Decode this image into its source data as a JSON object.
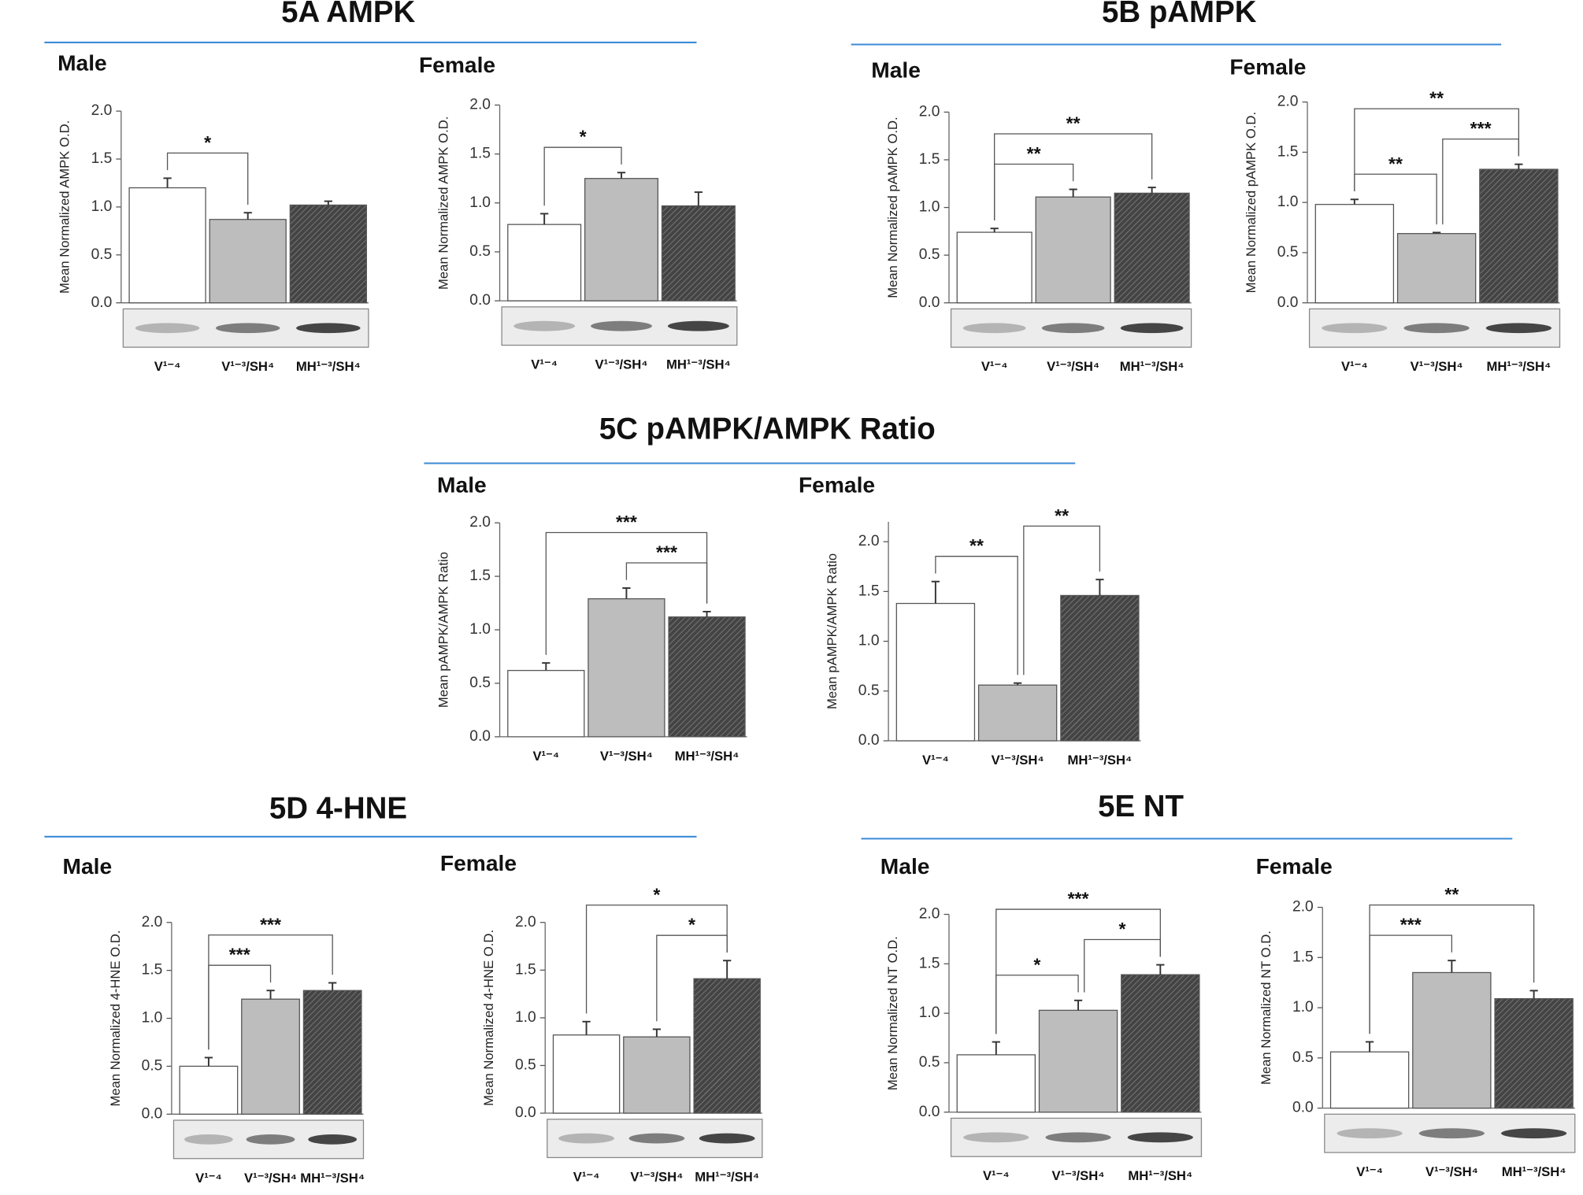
{
  "figure_titles": [
    "5A  AMPK",
    "5B  pAMPK",
    "5C  pAMPK/AMPK  Ratio",
    "5D  4-HNE",
    "5E  NT"
  ],
  "chart_data": [
    {
      "type": "bar",
      "subtitle": "Male",
      "y_label": "Mean Normalized AMPK O.D.",
      "categories": [
        "V¹⁻⁴",
        "V¹⁻³/SH⁴",
        "MH¹⁻³/SH⁴"
      ],
      "values": [
        1.2,
        0.87,
        1.02
      ],
      "errors": [
        0.1,
        0.07,
        0.04
      ],
      "colors": [
        "#ffffff",
        "#bdbdbd",
        "#555555"
      ],
      "hatched": [
        false,
        false,
        true
      ],
      "ylim": [
        0,
        2
      ],
      "yticks": [
        {
          "value": 0,
          "label": "0.0"
        },
        {
          "value": 0.5,
          "label": "0.5"
        },
        {
          "value": 1,
          "label": "1.0"
        },
        {
          "value": 1.5,
          "label": "1.5"
        },
        {
          "value": 2,
          "label": "2.0"
        }
      ],
      "annotations": [
        {
          "from": 0,
          "to": 1,
          "label": "*"
        }
      ]
    },
    {
      "type": "bar",
      "subtitle": "Female",
      "y_label": "Mean Normalized AMPK O.D.",
      "categories": [
        "V¹⁻⁴",
        "V¹⁻³/SH⁴",
        "MH¹⁻³/SH⁴"
      ],
      "values": [
        0.78,
        1.25,
        0.97
      ],
      "errors": [
        0.11,
        0.06,
        0.14
      ],
      "colors": [
        "#ffffff",
        "#bdbdbd",
        "#555555"
      ],
      "hatched": [
        false,
        false,
        true
      ],
      "ylim": [
        0,
        2
      ],
      "yticks": [
        {
          "value": 0,
          "label": "0.0"
        },
        {
          "value": 0.5,
          "label": "0.5"
        },
        {
          "value": 1,
          "label": "1.0"
        },
        {
          "value": 1.5,
          "label": "1.5"
        },
        {
          "value": 2,
          "label": "2.0"
        }
      ],
      "annotations": [
        {
          "from": 0,
          "to": 1,
          "label": "*"
        }
      ]
    },
    {
      "type": "bar",
      "subtitle": "Male",
      "y_label": "Mean Normalized pAMPK O.D.",
      "categories": [
        "V¹⁻⁴",
        "V¹⁻³/SH⁴",
        "MH¹⁻³/SH⁴"
      ],
      "values": [
        0.74,
        1.11,
        1.15
      ],
      "errors": [
        0.04,
        0.08,
        0.06
      ],
      "colors": [
        "#ffffff",
        "#bdbdbd",
        "#555555"
      ],
      "hatched": [
        false,
        false,
        true
      ],
      "ylim": [
        0,
        2
      ],
      "yticks": [
        {
          "value": 0,
          "label": "0.0"
        },
        {
          "value": 0.5,
          "label": "0.5"
        },
        {
          "value": 1,
          "label": "1.0"
        },
        {
          "value": 1.5,
          "label": "1.5"
        },
        {
          "value": 2,
          "label": "2.0"
        }
      ],
      "annotations": [
        {
          "from": 0,
          "to": 1,
          "label": "**"
        },
        {
          "from": 0,
          "to": 2,
          "label": "**"
        }
      ]
    },
    {
      "type": "bar",
      "subtitle": "Female",
      "y_label": "Mean Normalized pAMPK O.D.",
      "categories": [
        "V¹⁻⁴",
        "V¹⁻³/SH⁴",
        "MH¹⁻³/SH⁴"
      ],
      "values": [
        0.98,
        0.69,
        1.33
      ],
      "errors": [
        0.05,
        0.01,
        0.05
      ],
      "colors": [
        "#ffffff",
        "#bdbdbd",
        "#555555"
      ],
      "hatched": [
        false,
        false,
        true
      ],
      "ylim": [
        0,
        2
      ],
      "yticks": [
        {
          "value": 0,
          "label": "0.0"
        },
        {
          "value": 0.5,
          "label": "0.5"
        },
        {
          "value": 1,
          "label": "1.0"
        },
        {
          "value": 1.5,
          "label": "1.5"
        },
        {
          "value": 2,
          "label": "2.0"
        }
      ],
      "annotations": [
        {
          "from": 0,
          "to": 1,
          "label": "**"
        },
        {
          "from": 1,
          "to": 2,
          "label": "***"
        },
        {
          "from": 0,
          "to": 2,
          "label": "**"
        }
      ]
    },
    {
      "type": "bar",
      "subtitle": "Male",
      "y_label": "Mean pAMPK/AMPK Ratio",
      "categories": [
        "V¹⁻⁴",
        "V¹⁻³/SH⁴",
        "MH¹⁻³/SH⁴"
      ],
      "values": [
        0.62,
        1.29,
        1.12
      ],
      "errors": [
        0.07,
        0.1,
        0.05
      ],
      "colors": [
        "#ffffff",
        "#bdbdbd",
        "#555555"
      ],
      "hatched": [
        false,
        false,
        true
      ],
      "ylim": [
        0,
        2
      ],
      "yticks": [
        {
          "value": 0,
          "label": "0.0"
        },
        {
          "value": 0.5,
          "label": "0.5"
        },
        {
          "value": 1,
          "label": "1.0"
        },
        {
          "value": 1.5,
          "label": "1.5"
        },
        {
          "value": 2,
          "label": "2.0"
        }
      ],
      "annotations": [
        {
          "from": 1,
          "to": 2,
          "label": "***"
        },
        {
          "from": 0,
          "to": 2,
          "label": "***"
        }
      ]
    },
    {
      "type": "bar",
      "subtitle": "Female",
      "y_label": "Mean pAMPK/AMPK Ratio",
      "categories": [
        "V¹⁻⁴",
        "V¹⁻³/SH⁴",
        "MH¹⁻³/SH⁴"
      ],
      "values": [
        1.38,
        0.56,
        1.46
      ],
      "errors": [
        0.22,
        0.02,
        0.16
      ],
      "colors": [
        "#ffffff",
        "#bdbdbd",
        "#555555"
      ],
      "hatched": [
        false,
        false,
        true
      ],
      "ylim": [
        0,
        2.2
      ],
      "yticks": [
        {
          "value": 0,
          "label": "0.0"
        },
        {
          "value": 0.5,
          "label": "0.5"
        },
        {
          "value": 1,
          "label": "1.0"
        },
        {
          "value": 1.5,
          "label": "1.5"
        },
        {
          "value": 2,
          "label": "2.0"
        }
      ],
      "annotations": [
        {
          "from": 0,
          "to": 1,
          "label": "**"
        },
        {
          "from": 1,
          "to": 2,
          "label": "**"
        }
      ]
    },
    {
      "type": "bar",
      "subtitle": "Male",
      "y_label": "Mean Normalized 4-HNE O.D.",
      "categories": [
        "V¹⁻⁴",
        "V¹⁻³/SH⁴",
        "MH¹⁻³/SH⁴"
      ],
      "values": [
        0.5,
        1.2,
        1.29
      ],
      "errors": [
        0.09,
        0.09,
        0.08
      ],
      "colors": [
        "#ffffff",
        "#bdbdbd",
        "#555555"
      ],
      "hatched": [
        false,
        false,
        true
      ],
      "ylim": [
        0,
        2
      ],
      "yticks": [
        {
          "value": 0,
          "label": "0.0"
        },
        {
          "value": 0.5,
          "label": "0.5"
        },
        {
          "value": 1,
          "label": "1.0"
        },
        {
          "value": 1.5,
          "label": "1.5"
        },
        {
          "value": 2,
          "label": "2.0"
        }
      ],
      "annotations": [
        {
          "from": 0,
          "to": 1,
          "label": "***"
        },
        {
          "from": 0,
          "to": 2,
          "label": "***"
        }
      ]
    },
    {
      "type": "bar",
      "subtitle": "Female",
      "y_label": "Mean Normalized 4-HNE O.D.",
      "categories": [
        "V¹⁻⁴",
        "V¹⁻³/SH⁴",
        "MH¹⁻³/SH⁴"
      ],
      "values": [
        0.82,
        0.8,
        1.41
      ],
      "errors": [
        0.14,
        0.08,
        0.19
      ],
      "colors": [
        "#ffffff",
        "#bdbdbd",
        "#555555"
      ],
      "hatched": [
        false,
        false,
        true
      ],
      "ylim": [
        0,
        2
      ],
      "yticks": [
        {
          "value": 0,
          "label": "0.0"
        },
        {
          "value": 0.5,
          "label": "0.5"
        },
        {
          "value": 1,
          "label": "1.0"
        },
        {
          "value": 1.5,
          "label": "1.5"
        },
        {
          "value": 2,
          "label": "2.0"
        }
      ],
      "annotations": [
        {
          "from": 1,
          "to": 2,
          "label": "*"
        },
        {
          "from": 0,
          "to": 2,
          "label": "*"
        }
      ]
    },
    {
      "type": "bar",
      "subtitle": "Male",
      "y_label": "Mean Normalized NT O.D.",
      "categories": [
        "V¹⁻⁴",
        "V¹⁻³/SH⁴",
        "MH¹⁻³/SH⁴"
      ],
      "values": [
        0.58,
        1.03,
        1.39
      ],
      "errors": [
        0.13,
        0.1,
        0.1
      ],
      "colors": [
        "#ffffff",
        "#bdbdbd",
        "#555555"
      ],
      "hatched": [
        false,
        false,
        true
      ],
      "ylim": [
        0,
        2
      ],
      "yticks": [
        {
          "value": 0,
          "label": "0.0"
        },
        {
          "value": 0.5,
          "label": "0.5"
        },
        {
          "value": 1,
          "label": "1.0"
        },
        {
          "value": 1.5,
          "label": "1.5"
        },
        {
          "value": 2,
          "label": "2.0"
        }
      ],
      "annotations": [
        {
          "from": 0,
          "to": 1,
          "label": "*"
        },
        {
          "from": 1,
          "to": 2,
          "label": "*"
        },
        {
          "from": 0,
          "to": 2,
          "label": "***"
        }
      ]
    },
    {
      "type": "bar",
      "subtitle": "Female",
      "y_label": "Mean Normalized NT O.D.",
      "categories": [
        "V¹⁻⁴",
        "V¹⁻³/SH⁴",
        "MH¹⁻³/SH⁴"
      ],
      "values": [
        0.56,
        1.35,
        1.09
      ],
      "errors": [
        0.1,
        0.12,
        0.08
      ],
      "colors": [
        "#ffffff",
        "#bdbdbd",
        "#555555"
      ],
      "hatched": [
        false,
        false,
        true
      ],
      "ylim": [
        0,
        2
      ],
      "yticks": [
        {
          "value": 0,
          "label": "0.0"
        },
        {
          "value": 0.5,
          "label": "0.5"
        },
        {
          "value": 1,
          "label": "1.0"
        },
        {
          "value": 1.5,
          "label": "1.5"
        },
        {
          "value": 2,
          "label": "2.0"
        }
      ],
      "annotations": [
        {
          "from": 0,
          "to": 1,
          "label": "***"
        },
        {
          "from": 0,
          "to": 2,
          "label": "**"
        }
      ]
    }
  ]
}
